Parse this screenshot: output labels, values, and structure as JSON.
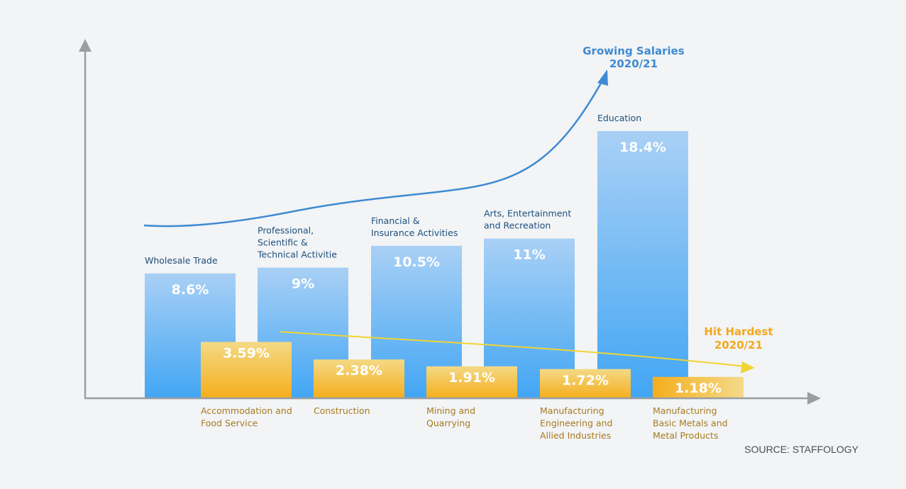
{
  "chart_data": {
    "type": "bar",
    "title": "",
    "xlabel": "",
    "ylabel": "",
    "ylim": [
      0,
      20
    ],
    "grid": false,
    "series": [
      {
        "name": "Growing Salaries 2020/21",
        "color": "#4da9f2",
        "annotation": [
          "Growing Salaries",
          "2020/21"
        ],
        "categories": [
          [
            "Wholesale Trade"
          ],
          [
            "Professional,",
            "Scientific &",
            "Technical Activitie"
          ],
          [
            "Financial &",
            "Insurance Activities"
          ],
          [
            "Arts, Entertainment",
            "and Recreation"
          ],
          [
            "Education"
          ]
        ],
        "values": [
          8.6,
          9,
          10.5,
          11,
          18.4
        ],
        "labels": [
          "8.6%",
          "9%",
          "10.5%",
          "11%",
          "18.4%"
        ]
      },
      {
        "name": "Hit Hardest 2020/21",
        "color": "#f5b223",
        "annotation": [
          "Hit Hardest",
          "2020/21"
        ],
        "categories": [
          [
            "Accommodation and",
            "Food Service"
          ],
          [
            "Construction"
          ],
          [
            "Mining and",
            "Quarrying"
          ],
          [
            "Manufacturing",
            "Engineering and",
            "Allied Industries"
          ],
          [
            "Manufacturing",
            "Basic Metals and",
            "Metal Products"
          ]
        ],
        "values": [
          3.59,
          2.38,
          1.91,
          1.72,
          1.18
        ],
        "labels": [
          "3.59%",
          "2.38%",
          "1.91%",
          "1.72%",
          "1.18%"
        ]
      }
    ],
    "source": "SOURCE: STAFFOLOGY"
  },
  "colors": {
    "axis": "#9a9ea3",
    "trend_up": "#3f8ad2",
    "trend_down": "#f0d433",
    "background": "#f2f4f6"
  }
}
